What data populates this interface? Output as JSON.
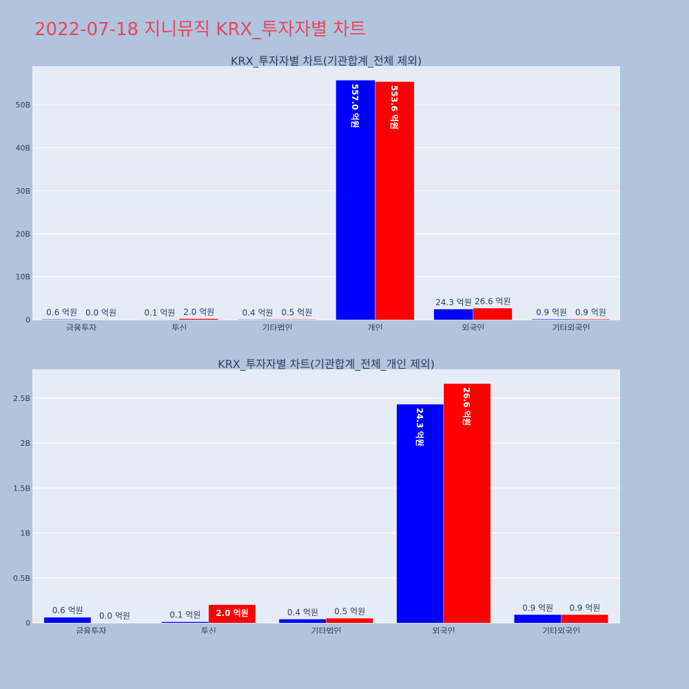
{
  "page": {
    "title": "2022-07-18 지니뮤직 KRX_투자자별 차트"
  },
  "colors": {
    "series_buy": "#0000ff",
    "series_sell": "#ff0000",
    "plot_bg": "#e5ecf6",
    "page_bg": "#b0c4de",
    "title": "#e8475b"
  },
  "chart_data": [
    {
      "type": "bar",
      "title": "KRX_투자자별 차트(기관합계_전체 제외)",
      "categories": [
        "금융투자",
        "투신",
        "기타법인",
        "개인",
        "외국인",
        "기타외국인"
      ],
      "series": [
        {
          "values": [
            60000000,
            10000000,
            40000000,
            55700000000,
            2430000000,
            90000000
          ],
          "labels": [
            "0.6 억원",
            "0.1 억원",
            "0.4 억원",
            "557.0 억원",
            "24.3 억원",
            "0.9 억원"
          ],
          "color": "#0000ff"
        },
        {
          "values": [
            0,
            200000000,
            50000000,
            55360000000,
            2660000000,
            90000000
          ],
          "labels": [
            "0.0 억원",
            "2.0 억원",
            "0.5 억원",
            "553.6 억원",
            "26.6 억원",
            "0.9 억원"
          ],
          "color": "#ff0000"
        }
      ],
      "ylim": [
        0,
        59000000000
      ],
      "yticks": [
        0,
        10000000000,
        20000000000,
        30000000000,
        40000000000,
        50000000000
      ],
      "ytick_labels": [
        "0",
        "10B",
        "20B",
        "30B",
        "40B",
        "50B"
      ],
      "grid": true
    },
    {
      "type": "bar",
      "title": "KRX_투자자별 차트(기관합계_전체_개인 제외)",
      "categories": [
        "금융투자",
        "투신",
        "기타법인",
        "외국인",
        "기타외국인"
      ],
      "series": [
        {
          "values": [
            60000000,
            10000000,
            40000000,
            2430000000,
            90000000
          ],
          "labels": [
            "0.6 억원",
            "0.1 억원",
            "0.4 억원",
            "24.3 억원",
            "0.9 억원"
          ],
          "color": "#0000ff"
        },
        {
          "values": [
            0,
            200000000,
            50000000,
            2660000000,
            90000000
          ],
          "labels": [
            "0.0 억원",
            "2.0 억원",
            "0.5 억원",
            "26.6 억원",
            "0.9 억원"
          ],
          "color": "#ff0000"
        }
      ],
      "ylim": [
        0,
        2820000000
      ],
      "yticks": [
        0,
        500000000,
        1000000000,
        1500000000,
        2000000000,
        2500000000
      ],
      "ytick_labels": [
        "0",
        "0.5B",
        "1B",
        "1.5B",
        "2B",
        "2.5B"
      ],
      "grid": true
    }
  ]
}
